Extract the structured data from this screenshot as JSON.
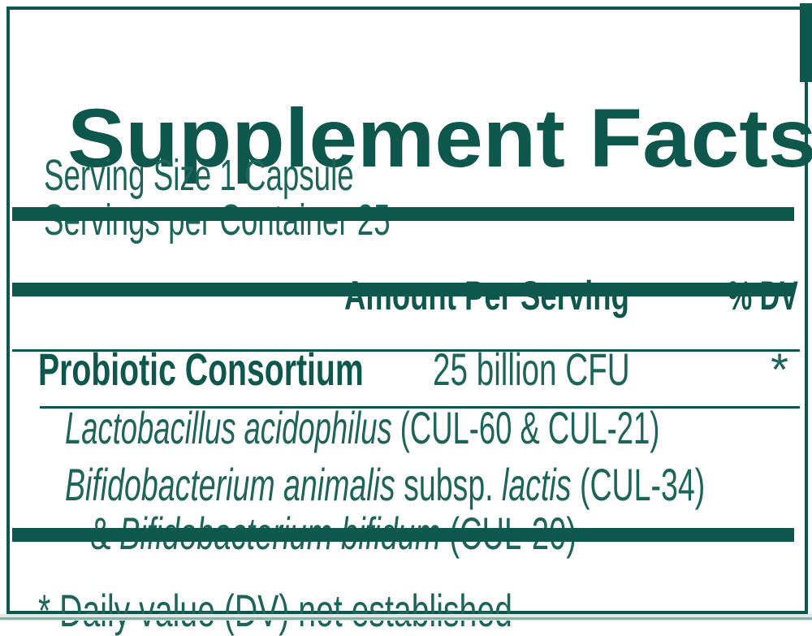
{
  "panel": {
    "title": "Supplement Facts",
    "serving_size": "Serving Size 1 Capsule",
    "servings_per_container": "Servings per Container 25",
    "columns": {
      "amount_header": "Amount Per Serving",
      "dv_header": "% DV"
    },
    "rows": [
      {
        "name": "Probiotic Consortium",
        "amount": "25 billion CFU",
        "dv": "*"
      }
    ],
    "sub_ingredients": [
      {
        "segments": [
          {
            "t": "Lactobacillus acidophilus ",
            "i": true
          },
          {
            "t": "(CUL-60 & CUL-21)",
            "i": false
          }
        ]
      },
      {
        "segments_line1": [
          {
            "t": "Bifidobacterium animalis ",
            "i": true
          },
          {
            "t": "subsp. ",
            "i": false
          },
          {
            "t": "lactis ",
            "i": true
          },
          {
            "t": "(CUL-34)",
            "i": false
          }
        ],
        "segments_line2": [
          {
            "t": "& ",
            "i": false
          },
          {
            "t": "Bifidobacterium bifidum ",
            "i": true
          },
          {
            "t": "(CUL-20)",
            "i": false
          }
        ]
      }
    ],
    "footnote": "* Daily value (DV) not established",
    "colors": {
      "teal": "#0d574c",
      "body_text": "#1d6459",
      "background": "#ffffff",
      "outer_strip": "#dfe9e6",
      "outer_strip_line": "#8cada5"
    }
  }
}
